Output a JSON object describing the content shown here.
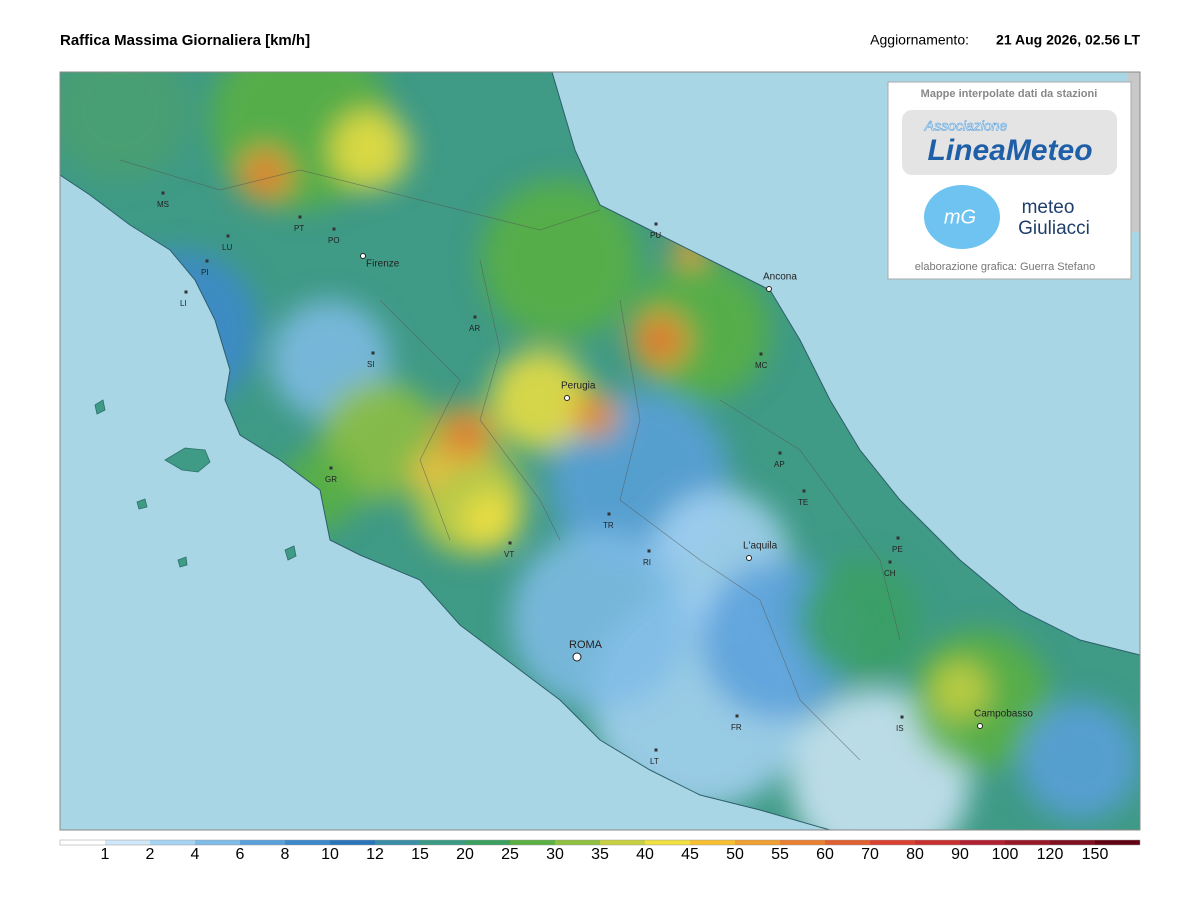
{
  "header": {
    "title": "Raffica Massima Giornaliera [km/h]",
    "update_label": "Aggiornamento:",
    "update_time": "21 Aug 2026, 02.56 LT"
  },
  "credits": {
    "caption": "Mappe interpolate dati da stazioni",
    "logo1_top": "Associazione",
    "logo1_main": "LineaMeteo",
    "logo2_icon": "mG",
    "logo2_line1": "meteo",
    "logo2_line2": "Giuliacci",
    "footer": "elaborazione grafica: Guerra Stefano"
  },
  "cities": [
    {
      "label": "MS"
    },
    {
      "label": "LU"
    },
    {
      "label": "PI"
    },
    {
      "label": "LI"
    },
    {
      "label": "PT"
    },
    {
      "label": "PO"
    },
    {
      "label": "Firenze"
    },
    {
      "label": "AR"
    },
    {
      "label": "SI"
    },
    {
      "label": "GR"
    },
    {
      "label": "Perugia"
    },
    {
      "label": "TR"
    },
    {
      "label": "VT"
    },
    {
      "label": "RI"
    },
    {
      "label": "ROMA"
    },
    {
      "label": "FR"
    },
    {
      "label": "LT"
    },
    {
      "label": "PU"
    },
    {
      "label": "Ancona"
    },
    {
      "label": "MC"
    },
    {
      "label": "AP"
    },
    {
      "label": "TE"
    },
    {
      "label": "L'aquila"
    },
    {
      "label": "PE"
    },
    {
      "label": "CH"
    },
    {
      "label": "IS"
    },
    {
      "label": "Campobasso"
    }
  ],
  "legend": {
    "labels": [
      1,
      2,
      4,
      6,
      8,
      10,
      12,
      15,
      20,
      25,
      30,
      35,
      40,
      45,
      50,
      55,
      60,
      70,
      80,
      90,
      100,
      120,
      150
    ],
    "colors": [
      "#ffffff",
      "#d0e8f8",
      "#a8d4f4",
      "#80bce8",
      "#5aa0dc",
      "#3c88cc",
      "#2a74bc",
      "#3a8ea8",
      "#3a9a84",
      "#3aa060",
      "#5ab040",
      "#90c040",
      "#c8d040",
      "#f0e040",
      "#f8c030",
      "#f0a030",
      "#e88030",
      "#e06030",
      "#d84030",
      "#c83030",
      "#b02030",
      "#981828",
      "#801020",
      "#600010"
    ]
  }
}
